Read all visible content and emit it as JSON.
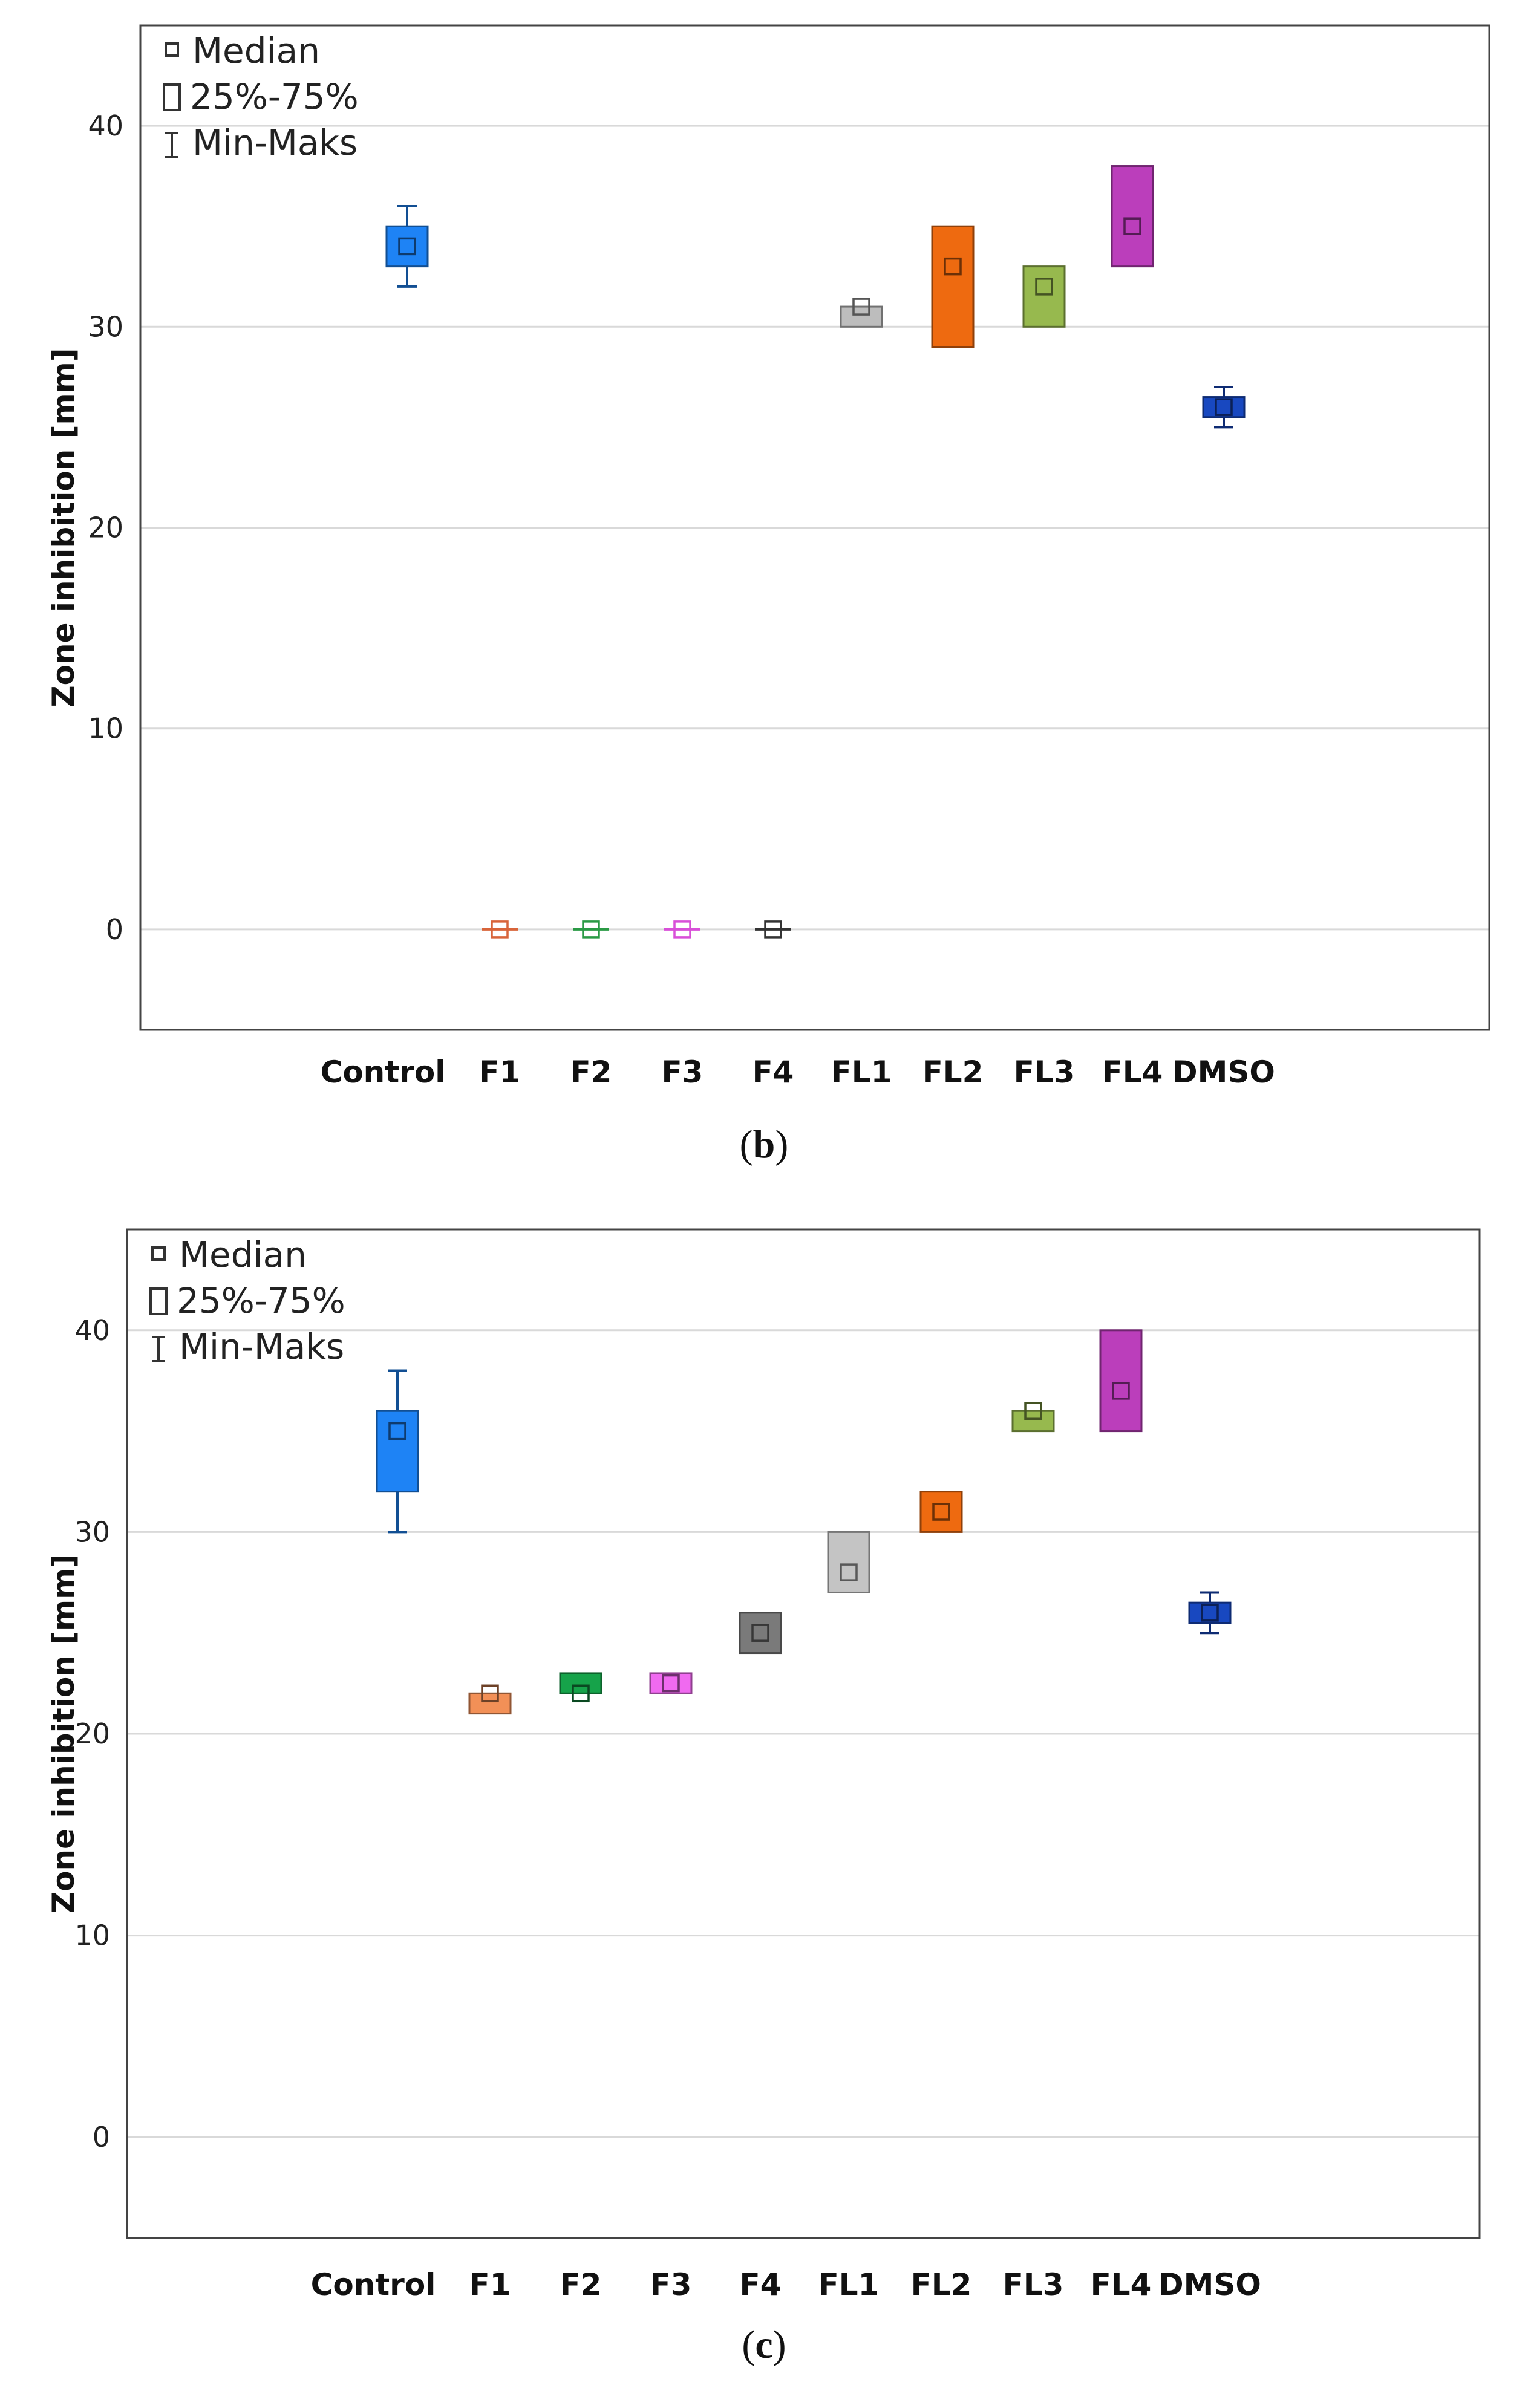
{
  "legend": {
    "median": "Median",
    "iqr": "25%-75%",
    "range": "Min-Maks"
  },
  "chart_data": [
    {
      "panel_label": "b",
      "type": "boxplot",
      "ylabel": "Zone inhibition [mm]",
      "xlabel": "",
      "ylim": [
        -5,
        45
      ],
      "yticks": [
        0,
        10,
        20,
        30,
        40
      ],
      "grid": true,
      "legend_position": "top-left",
      "categories": [
        "Control",
        "F1",
        "F2",
        "F3",
        "F4",
        "FL1",
        "FL2",
        "FL3",
        "FL4",
        "DMSO"
      ],
      "boxes": [
        {
          "category": "Control",
          "min": 32,
          "q1": 33,
          "median": 34,
          "q3": 35,
          "max": 36,
          "color": "#1e83f5"
        },
        {
          "category": "F1",
          "min": 0,
          "q1": 0,
          "median": 0,
          "q3": 0,
          "max": 0,
          "color": "#d8643a"
        },
        {
          "category": "F2",
          "min": 0,
          "q1": 0,
          "median": 0,
          "q3": 0,
          "max": 0,
          "color": "#2a9a45"
        },
        {
          "category": "F3",
          "min": 0,
          "q1": 0,
          "median": 0,
          "q3": 0,
          "max": 0,
          "color": "#d84fd8"
        },
        {
          "category": "F4",
          "min": 0,
          "q1": 0,
          "median": 0,
          "q3": 0,
          "max": 0,
          "color": "#333333"
        },
        {
          "category": "FL1",
          "min": 30,
          "q1": 30,
          "median": 31,
          "q3": 31,
          "max": 31,
          "color": "#bdbdbd"
        },
        {
          "category": "FL2",
          "min": 29,
          "q1": 29,
          "median": 33,
          "q3": 35,
          "max": 35,
          "color": "#ee6a10"
        },
        {
          "category": "FL3",
          "min": 30,
          "q1": 30,
          "median": 32,
          "q3": 33,
          "max": 33,
          "color": "#97b94e"
        },
        {
          "category": "FL4",
          "min": 33,
          "q1": 33,
          "median": 35,
          "q3": 38,
          "max": 38,
          "color": "#bb3ebb"
        },
        {
          "category": "DMSO",
          "min": 25,
          "q1": 25.5,
          "median": 26,
          "q3": 26.5,
          "max": 27,
          "color": "#1848c0"
        }
      ]
    },
    {
      "panel_label": "c",
      "type": "boxplot",
      "ylabel": "Zone inhibition [mm]",
      "xlabel": "",
      "ylim": [
        -5,
        45
      ],
      "yticks": [
        0,
        10,
        20,
        30,
        40
      ],
      "grid": true,
      "legend_position": "top-left",
      "categories": [
        "Control",
        "F1",
        "F2",
        "F3",
        "F4",
        "FL1",
        "FL2",
        "FL3",
        "FL4",
        "DMSO"
      ],
      "boxes": [
        {
          "category": "Control",
          "min": 30,
          "q1": 32,
          "median": 35,
          "q3": 36,
          "max": 38,
          "color": "#1e83f5"
        },
        {
          "category": "F1",
          "min": 21,
          "q1": 21,
          "median": 22,
          "q3": 22,
          "max": 22,
          "color": "#f29057"
        },
        {
          "category": "F2",
          "min": 22,
          "q1": 22,
          "median": 22,
          "q3": 23,
          "max": 23,
          "color": "#16a34a"
        },
        {
          "category": "F3",
          "min": 22,
          "q1": 22,
          "median": 22.5,
          "q3": 23,
          "max": 23,
          "color": "#f06af0"
        },
        {
          "category": "F4",
          "min": 24,
          "q1": 24,
          "median": 25,
          "q3": 26,
          "max": 26,
          "color": "#7a7a7a"
        },
        {
          "category": "FL1",
          "min": 27,
          "q1": 27,
          "median": 28,
          "q3": 30,
          "max": 30,
          "color": "#c4c4c4"
        },
        {
          "category": "FL2",
          "min": 30,
          "q1": 30,
          "median": 31,
          "q3": 32,
          "max": 32,
          "color": "#ee6a10"
        },
        {
          "category": "FL3",
          "min": 35,
          "q1": 35,
          "median": 36,
          "q3": 36,
          "max": 36,
          "color": "#97b94e"
        },
        {
          "category": "FL4",
          "min": 35,
          "q1": 35,
          "median": 37,
          "q3": 40,
          "max": 40,
          "color": "#bb3ebb"
        },
        {
          "category": "DMSO",
          "min": 25,
          "q1": 25.5,
          "median": 26,
          "q3": 26.5,
          "max": 27,
          "color": "#1848c0"
        }
      ]
    }
  ]
}
